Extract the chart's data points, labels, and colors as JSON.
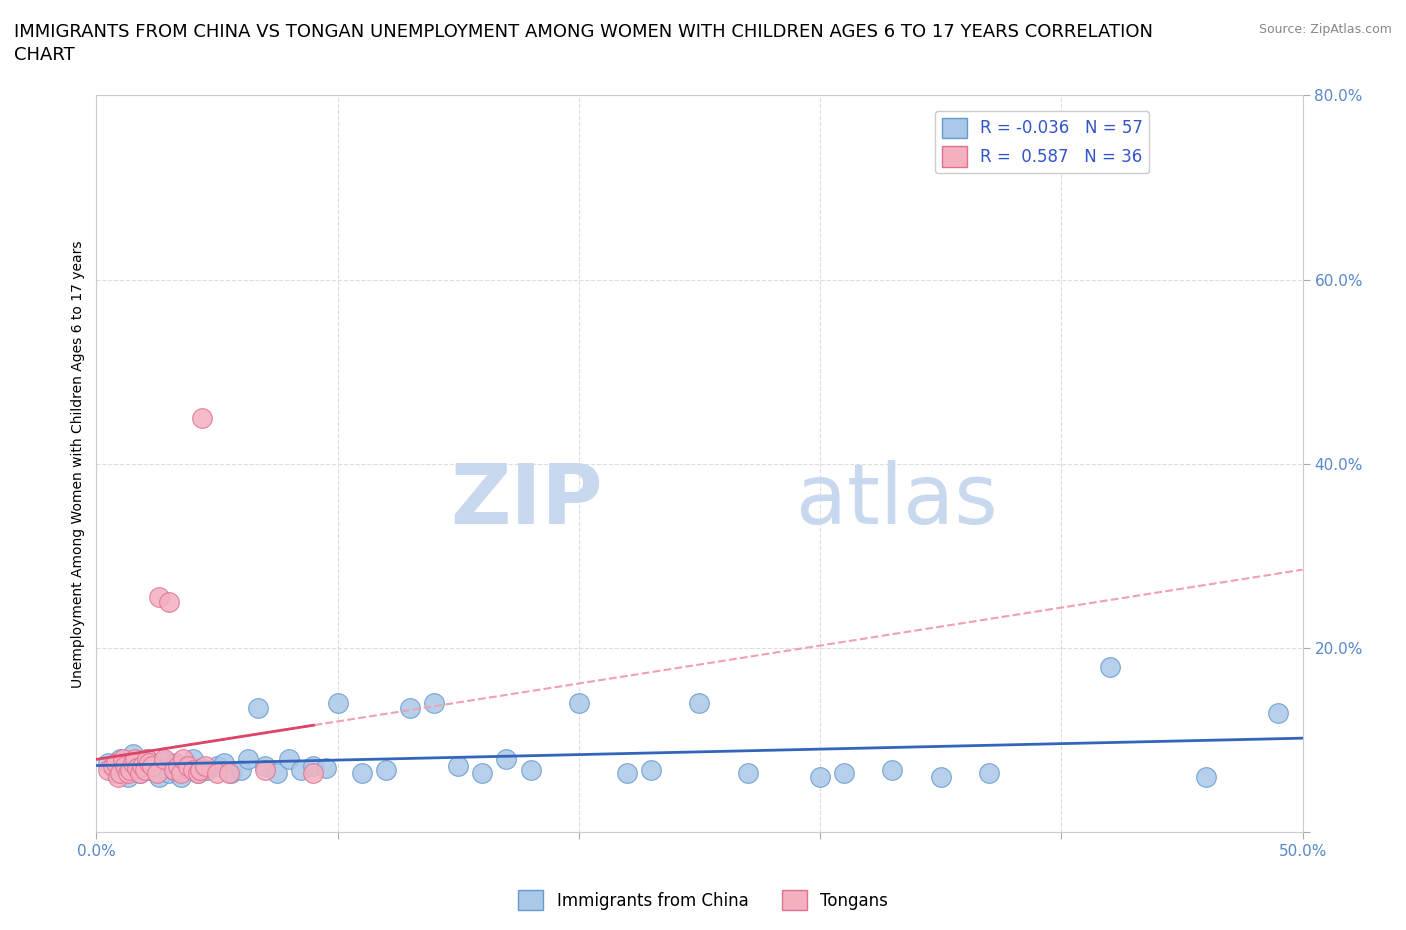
{
  "title_line1": "IMMIGRANTS FROM CHINA VS TONGAN UNEMPLOYMENT AMONG WOMEN WITH CHILDREN AGES 6 TO 17 YEARS CORRELATION",
  "title_line2": "CHART",
  "source": "Source: ZipAtlas.com",
  "ylabel": "Unemployment Among Women with Children Ages 6 to 17 years",
  "xlim": [
    0.0,
    0.5
  ],
  "ylim": [
    0.0,
    0.8
  ],
  "xtick_left": 0.0,
  "xtick_right": 0.5,
  "xtick_left_label": "0.0%",
  "xtick_right_label": "50.0%",
  "yticks": [
    0.0,
    0.2,
    0.4,
    0.6,
    0.8
  ],
  "yticklabels": [
    "",
    "20.0%",
    "40.0%",
    "60.0%",
    "80.0%"
  ],
  "legend_R_china": "-0.036",
  "legend_N_china": "57",
  "legend_R_tonga": "0.587",
  "legend_N_tonga": "36",
  "china_color": "#aac8e8",
  "tonga_color": "#f5b0c0",
  "china_edge_color": "#6699cc",
  "tonga_edge_color": "#e07090",
  "china_trend_color": "#3366bb",
  "tonga_trend_solid_color": "#dd4466",
  "tonga_trend_dashed_color": "#f0a0b0",
  "watermark_zip": "ZIP",
  "watermark_atlas": "atlas",
  "watermark_color": "#c8d8ee",
  "grid_color": "#dddddd",
  "background_color": "#ffffff",
  "tick_color": "#5588cc",
  "china_scatter_x": [
    0.005,
    0.008,
    0.01,
    0.012,
    0.013,
    0.015,
    0.016,
    0.018,
    0.02,
    0.021,
    0.022,
    0.025,
    0.026,
    0.028,
    0.03,
    0.032,
    0.033,
    0.035,
    0.037,
    0.04,
    0.042,
    0.044,
    0.046,
    0.05,
    0.053,
    0.056,
    0.06,
    0.063,
    0.067,
    0.07,
    0.075,
    0.08,
    0.085,
    0.09,
    0.095,
    0.1,
    0.11,
    0.12,
    0.13,
    0.14,
    0.15,
    0.16,
    0.17,
    0.18,
    0.2,
    0.22,
    0.23,
    0.25,
    0.27,
    0.3,
    0.31,
    0.33,
    0.35,
    0.37,
    0.42,
    0.46,
    0.49
  ],
  "china_scatter_y": [
    0.075,
    0.065,
    0.08,
    0.07,
    0.06,
    0.085,
    0.07,
    0.065,
    0.075,
    0.08,
    0.068,
    0.072,
    0.06,
    0.078,
    0.065,
    0.068,
    0.075,
    0.06,
    0.07,
    0.08,
    0.065,
    0.07,
    0.068,
    0.072,
    0.075,
    0.065,
    0.068,
    0.08,
    0.135,
    0.072,
    0.065,
    0.08,
    0.068,
    0.072,
    0.07,
    0.14,
    0.065,
    0.068,
    0.135,
    0.14,
    0.072,
    0.065,
    0.08,
    0.068,
    0.14,
    0.065,
    0.068,
    0.14,
    0.065,
    0.06,
    0.065,
    0.068,
    0.06,
    0.065,
    0.18,
    0.06,
    0.13
  ],
  "tonga_scatter_x": [
    0.005,
    0.007,
    0.008,
    0.009,
    0.01,
    0.011,
    0.012,
    0.013,
    0.014,
    0.015,
    0.016,
    0.017,
    0.018,
    0.019,
    0.02,
    0.021,
    0.022,
    0.023,
    0.025,
    0.026,
    0.028,
    0.03,
    0.032,
    0.034,
    0.035,
    0.036,
    0.038,
    0.04,
    0.042,
    0.043,
    0.044,
    0.045,
    0.05,
    0.055,
    0.07,
    0.09
  ],
  "tonga_scatter_y": [
    0.068,
    0.072,
    0.075,
    0.06,
    0.065,
    0.08,
    0.072,
    0.065,
    0.068,
    0.075,
    0.08,
    0.07,
    0.065,
    0.072,
    0.068,
    0.08,
    0.075,
    0.072,
    0.065,
    0.255,
    0.08,
    0.25,
    0.068,
    0.072,
    0.065,
    0.08,
    0.072,
    0.068,
    0.065,
    0.068,
    0.45,
    0.072,
    0.065,
    0.065,
    0.068,
    0.065
  ],
  "title_fontsize": 13,
  "axis_label_fontsize": 10,
  "tick_fontsize": 11,
  "legend_fontsize": 12
}
